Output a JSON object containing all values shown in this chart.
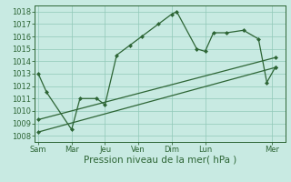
{
  "title": "Pression niveau de la mer( hPa )",
  "bg_color": "#c8eae2",
  "grid_color": "#90c8b8",
  "line_color": "#2d6535",
  "ylim": [
    1007.5,
    1018.5
  ],
  "xlim": [
    -0.2,
    14.8
  ],
  "x_labels": [
    "Sam",
    "Mar",
    "Jeu",
    "Ven",
    "Dim",
    "Lun",
    "Mer"
  ],
  "x_positions": [
    0,
    2,
    4,
    6,
    8,
    10,
    14
  ],
  "s1x": [
    0,
    0.5,
    2.0,
    2.5,
    3.5,
    4.0,
    4.7,
    5.5,
    6.2,
    7.2,
    8.0,
    8.3,
    9.5,
    10.0,
    10.5,
    11.3,
    12.3,
    13.2,
    13.7,
    14.2
  ],
  "s1y": [
    1013.0,
    1011.5,
    1008.5,
    1011.0,
    1011.0,
    1010.5,
    1014.5,
    1015.3,
    1016.0,
    1017.0,
    1017.8,
    1018.0,
    1015.0,
    1014.8,
    1016.3,
    1016.3,
    1016.5,
    1015.8,
    1012.3,
    1013.5
  ],
  "s2x": [
    0,
    14.2
  ],
  "s2y": [
    1008.3,
    1013.5
  ],
  "s3x": [
    0,
    14.2
  ],
  "s3y": [
    1009.3,
    1014.3
  ],
  "tick_label_size": 6,
  "xlabel_size": 7.5,
  "marker_size": 2.5,
  "line_width": 0.9
}
